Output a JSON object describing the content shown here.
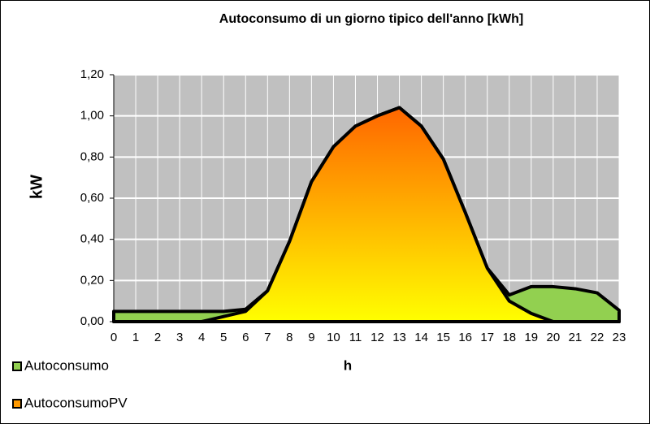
{
  "chart_data": {
    "type": "area",
    "title": "Autoconsumo di un giorno tipico dell'anno [kWh]",
    "x_label": "h",
    "y_label": "kW",
    "categories": [
      0,
      1,
      2,
      3,
      4,
      5,
      6,
      7,
      8,
      9,
      10,
      11,
      12,
      13,
      14,
      15,
      16,
      17,
      18,
      19,
      20,
      21,
      22,
      23
    ],
    "series": [
      {
        "name": "Autoconsumo",
        "color": "#92d050",
        "values": [
          0.05,
          0.05,
          0.05,
          0.05,
          0.05,
          0.05,
          0.06,
          0.15,
          0.39,
          0.68,
          0.85,
          0.95,
          1.0,
          1.04,
          0.95,
          0.79,
          0.53,
          0.26,
          0.13,
          0.17,
          0.17,
          0.16,
          0.14,
          0.055
        ]
      },
      {
        "name": "AutoconsumoPV",
        "color": "#ff9900",
        "gradient": [
          "#ff6600",
          "#ffff00"
        ],
        "values": [
          0,
          0,
          0,
          0,
          0,
          0.025,
          0.05,
          0.15,
          0.39,
          0.68,
          0.85,
          0.95,
          1.0,
          1.04,
          0.95,
          0.79,
          0.53,
          0.26,
          0.1,
          0.04,
          0,
          0,
          0,
          0
        ]
      }
    ],
    "ylim": [
      0,
      1.2
    ],
    "yticks": [
      {
        "value": 0,
        "label": "0,00"
      },
      {
        "value": 0.2,
        "label": "0,20"
      },
      {
        "value": 0.4,
        "label": "0,40"
      },
      {
        "value": 0.6,
        "label": "0,60"
      },
      {
        "value": 0.8,
        "label": "0,80"
      },
      {
        "value": 1.0,
        "label": "1,00"
      },
      {
        "value": 1.2,
        "label": "1,20"
      }
    ],
    "grid": true,
    "plot_background": "#c0c0c0",
    "legend": "bottom-left"
  }
}
